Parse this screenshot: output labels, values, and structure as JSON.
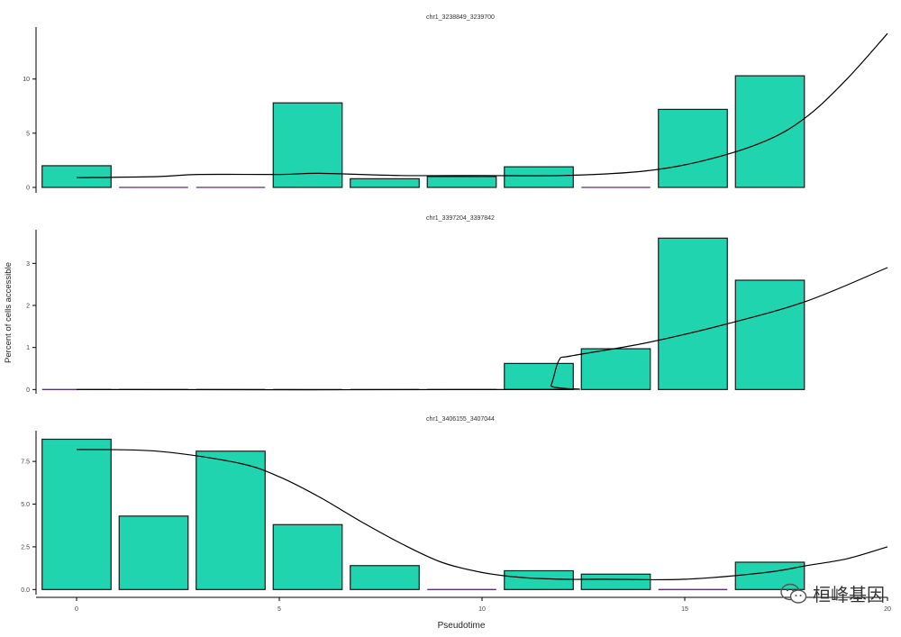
{
  "chart_data": {
    "type": "bar",
    "ylabel": "Percent of cells accessible",
    "xlabel": "Pseudotime",
    "xlim": [
      -1.0,
      20.0
    ],
    "x_ticks": [
      0,
      5,
      10,
      15,
      20
    ],
    "bar_centers": [
      0.0,
      1.9,
      3.8,
      5.7,
      7.6,
      9.5,
      11.4,
      13.3,
      15.2,
      17.1
    ],
    "bar_width": 1.7,
    "bar_color": "#20d4b0",
    "zero_line_color": "#5a2d82",
    "panels": [
      {
        "title": "chr1_3238849_3239700",
        "ylim": [
          -0.5,
          14.8
        ],
        "y_ticks": [
          "0",
          "5",
          "10"
        ],
        "values": [
          2.0,
          0.0,
          0.0,
          7.8,
          0.8,
          1.0,
          1.9,
          0.0,
          7.2,
          10.3
        ],
        "trend": [
          [
            0.0,
            0.9
          ],
          [
            2.0,
            1.0
          ],
          [
            3.0,
            1.2
          ],
          [
            5.0,
            1.2
          ],
          [
            6.0,
            1.3
          ],
          [
            8.0,
            1.1
          ],
          [
            10.0,
            1.1
          ],
          [
            12.0,
            1.1
          ],
          [
            14.0,
            1.5
          ],
          [
            15.5,
            2.5
          ],
          [
            17.0,
            4.3
          ],
          [
            18.0,
            6.5
          ],
          [
            19.0,
            10.0
          ],
          [
            20.0,
            14.2
          ]
        ]
      },
      {
        "title": "chr1_3397204_3397842",
        "ylim": [
          -0.1,
          3.8
        ],
        "y_ticks": [
          "0",
          "1",
          "2",
          "3"
        ],
        "values": [
          0.0,
          0.0,
          0.0,
          0.0,
          0.0,
          0.0,
          0.62,
          0.97,
          3.6,
          2.6
        ],
        "trend": [
          [
            0.0,
            0.0
          ],
          [
            11.5,
            0.0
          ],
          [
            11.7,
            0.1
          ],
          [
            11.9,
            0.7
          ],
          [
            12.2,
            0.8
          ],
          [
            14.0,
            1.1
          ],
          [
            16.0,
            1.55
          ],
          [
            18.0,
            2.1
          ],
          [
            20.0,
            2.9
          ]
        ]
      },
      {
        "title": "chr1_3406155_3407044",
        "ylim": [
          -0.3,
          9.3
        ],
        "y_ticks": [
          "0.0",
          "2.5",
          "5.0",
          "7.5"
        ],
        "values": [
          8.8,
          4.3,
          8.1,
          3.8,
          1.4,
          0.0,
          1.1,
          0.9,
          0.0,
          1.6
        ],
        "trend": [
          [
            0.0,
            8.2
          ],
          [
            2.0,
            8.1
          ],
          [
            4.0,
            7.4
          ],
          [
            5.0,
            6.6
          ],
          [
            6.0,
            5.4
          ],
          [
            7.0,
            4.0
          ],
          [
            8.0,
            2.7
          ],
          [
            9.0,
            1.6
          ],
          [
            10.0,
            1.0
          ],
          [
            11.0,
            0.7
          ],
          [
            12.0,
            0.6
          ],
          [
            13.0,
            0.6
          ],
          [
            15.0,
            0.6
          ],
          [
            17.0,
            1.0
          ],
          [
            18.0,
            1.4
          ],
          [
            19.0,
            1.8
          ],
          [
            20.0,
            2.5
          ]
        ]
      }
    ]
  },
  "watermark": {
    "text": "桓峰基因",
    "icon": "wechat-bubble-icon"
  }
}
